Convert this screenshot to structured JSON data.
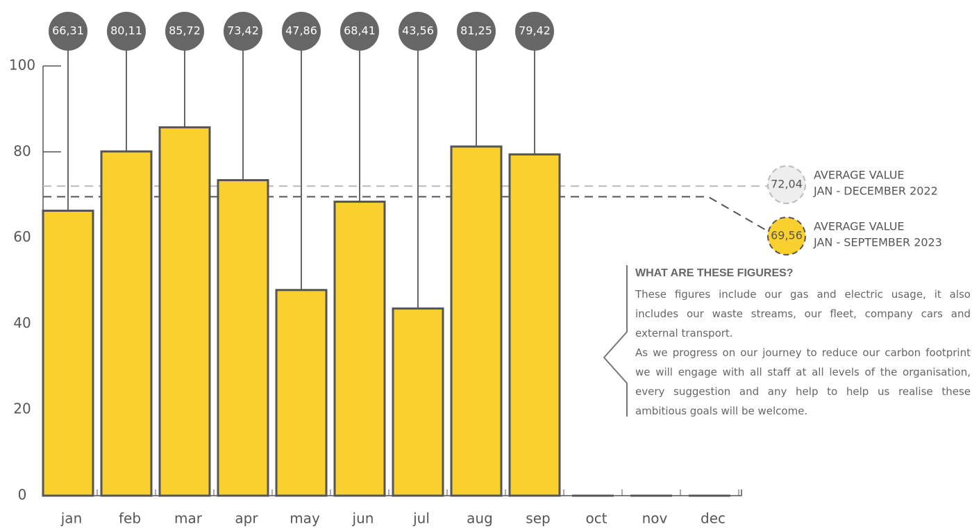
{
  "chart_data": {
    "type": "bar",
    "categories": [
      "jan",
      "feb",
      "mar",
      "apr",
      "may",
      "jun",
      "jul",
      "aug",
      "sep",
      "oct",
      "nov",
      "dec"
    ],
    "values": [
      66.31,
      80.11,
      85.72,
      73.42,
      47.86,
      68.41,
      43.56,
      81.25,
      79.42,
      null,
      null,
      null
    ],
    "value_labels": [
      "66,31",
      "80,11",
      "85,72",
      "73,42",
      "47,86",
      "68,41",
      "43,56",
      "81,25",
      "79,42",
      null,
      null,
      null
    ],
    "color": "#f9d02f",
    "ylim": [
      0,
      100
    ],
    "yticks": [
      0,
      20,
      40,
      60,
      80,
      100
    ],
    "reference_lines": [
      {
        "value": 72.04,
        "label": "72,04",
        "text": [
          "AVERAGE VALUE",
          "JAN - DECEMBER 2022"
        ],
        "color": "#bbbbbb",
        "fill": "#eeeeee"
      },
      {
        "value": 69.56,
        "label": "69,56",
        "text": [
          "AVERAGE VALUE",
          "JAN - SEPTEMBER 2023"
        ],
        "color": "#555555",
        "fill": "#f9d02f"
      }
    ]
  },
  "info": {
    "heading": "WHAT ARE THESE FIGURES?",
    "paragraphs": [
      "These figures include our gas and electric usage, it also includes our waste streams, our fleet, company cars and external transport.",
      "As we progress on our journey to reduce our carbon footprint we will engage with all staff at all levels of the organisation, every suggestion and any help to help us realise these ambitious goals will be welcome."
    ]
  }
}
